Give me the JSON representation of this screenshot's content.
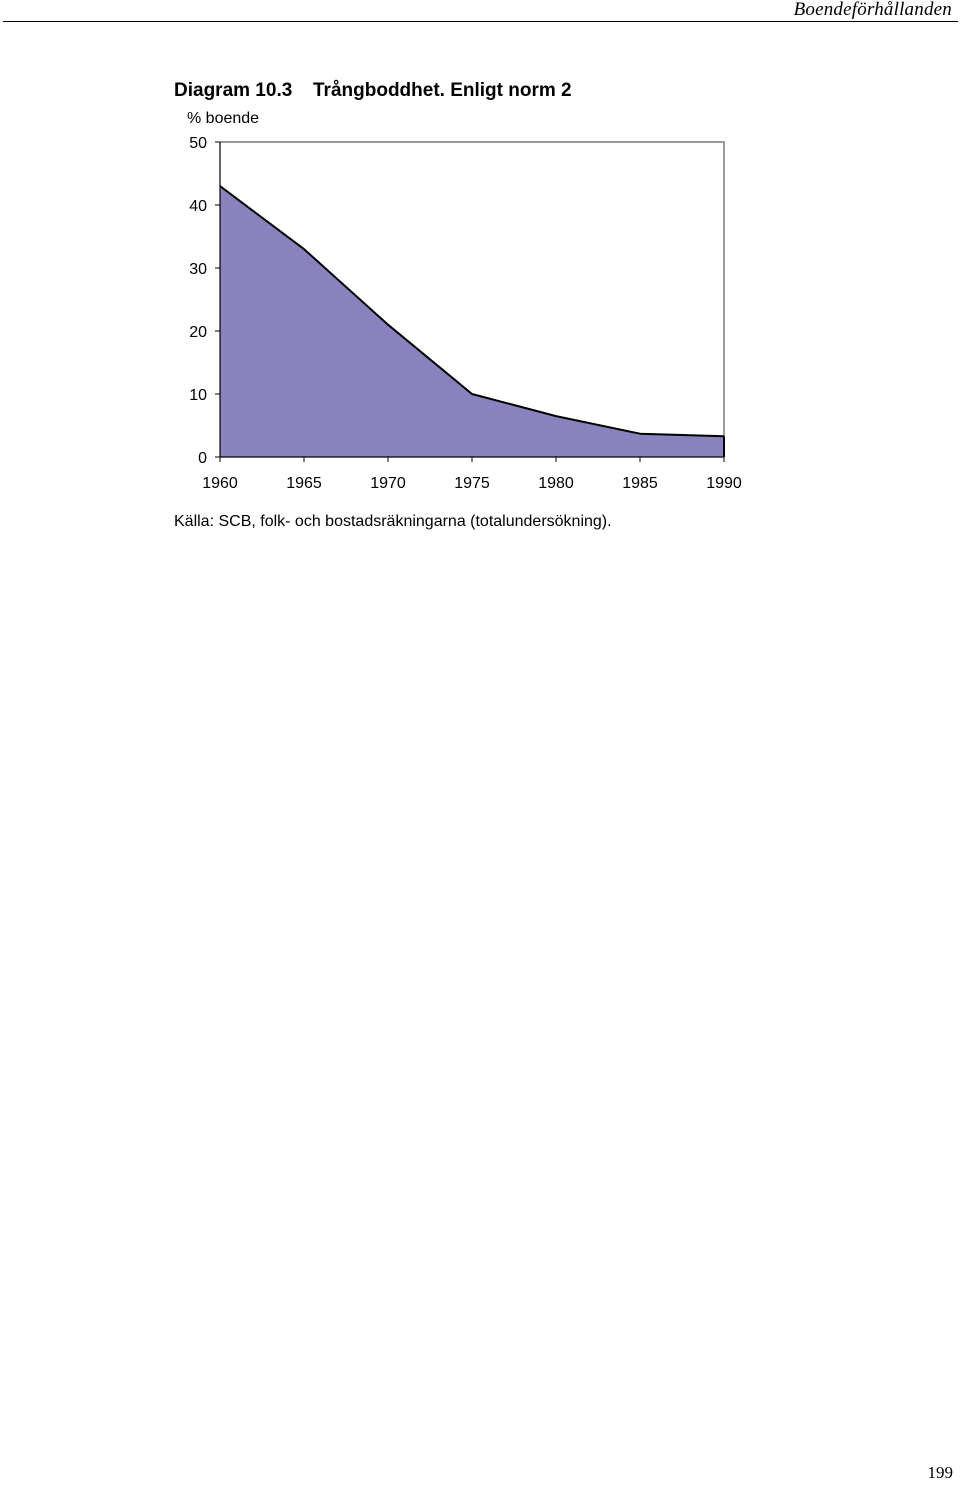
{
  "page": {
    "running_header": "Boendeförhållanden",
    "page_number": "199"
  },
  "figure": {
    "label": "Diagram 10.3",
    "source": "Källa: SCB, folk- och bostadsräkningarna (totalundersökning)."
  },
  "chart_data": {
    "type": "area",
    "title": "Trångboddhet. Enligt norm 2",
    "ylabel": "% boende",
    "xlabel": "",
    "x": [
      1960,
      1965,
      1970,
      1975,
      1980,
      1985,
      1990
    ],
    "x_ticks": [
      "1960",
      "1965",
      "1970",
      "1975",
      "1980",
      "1985",
      "1990"
    ],
    "y_ticks": [
      "0",
      "10",
      "20",
      "30",
      "40",
      "50"
    ],
    "ylim": [
      0,
      50
    ],
    "xlim": [
      1960,
      1990
    ],
    "grid": false,
    "legend": "none",
    "series": [
      {
        "values": [
          43,
          33,
          21,
          10,
          6.5,
          3.7,
          3.3
        ]
      }
    ],
    "colors": {
      "fill": "#8883be",
      "line": "#000000",
      "frame": "#9a9a9a"
    }
  }
}
